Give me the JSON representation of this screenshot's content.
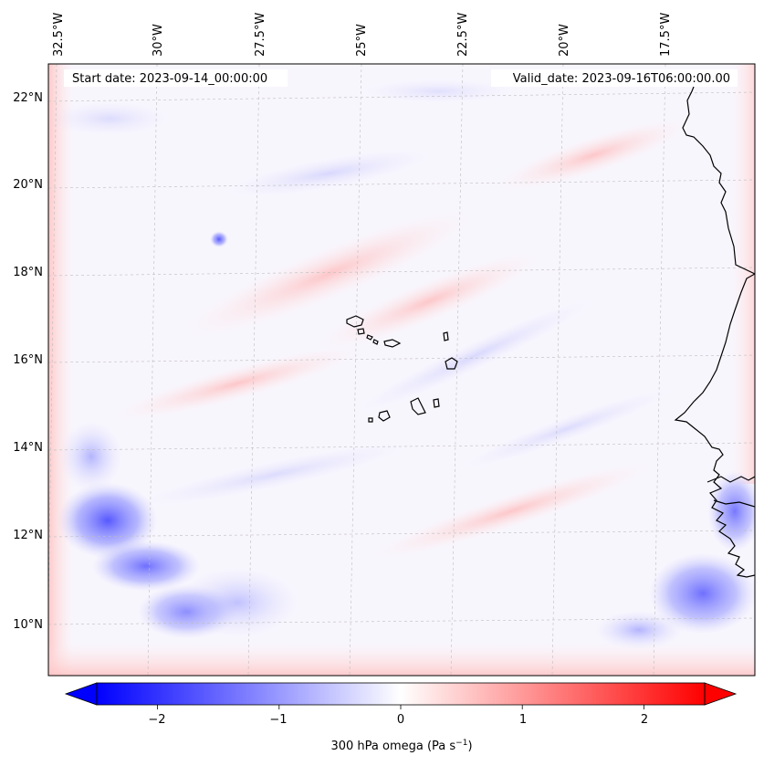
{
  "map": {
    "start_label": "Start date: 2023-09-14_00:00:00",
    "valid_label": "Valid_date: 2023-09-16T06:00:00.00",
    "lon_labels": [
      "32.5°W",
      "30°W",
      "27.5°W",
      "25°W",
      "22.5°W",
      "20°W",
      "17.5°W"
    ],
    "lat_labels": [
      "22°N",
      "20°N",
      "18°N",
      "16°N",
      "14°N",
      "12°N",
      "10°N"
    ],
    "field": "300 hPa omega",
    "gridlines": true
  },
  "colorbar": {
    "label_main": "300 hPa omega (Pa s",
    "label_exp": "−1",
    "label_close": ")",
    "ticks": [
      "−2",
      "−1",
      "0",
      "1",
      "2"
    ],
    "tick_values": [
      -2,
      -1,
      0,
      1,
      2
    ],
    "range": [
      -2.5,
      2.5
    ],
    "extend": "both",
    "cmap": "bwr",
    "colors": {
      "low": "#0000ff",
      "mid": "#ffffff",
      "high": "#ff0000"
    }
  }
}
